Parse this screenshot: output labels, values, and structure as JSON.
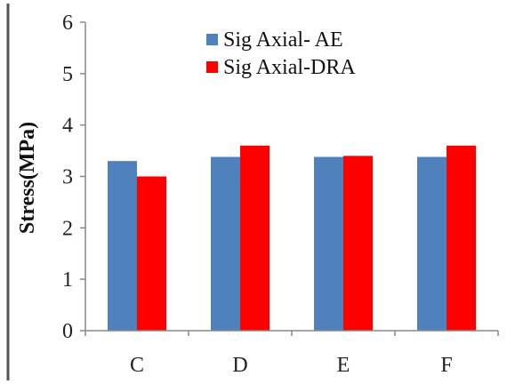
{
  "chart_data": {
    "type": "bar",
    "categories": [
      "C",
      "D",
      "E",
      "F"
    ],
    "series": [
      {
        "name": "Sig Axial- AE",
        "values": [
          3.3,
          3.38,
          3.38,
          3.38
        ],
        "color": "#4F81BD"
      },
      {
        "name": "Sig Axial-DRA",
        "values": [
          3.0,
          3.6,
          3.4,
          3.6
        ],
        "color": "#FF0000"
      }
    ],
    "title": "",
    "xlabel": "",
    "ylabel": "Stress(MPa)",
    "ylim": [
      0,
      6
    ],
    "yticks": [
      0,
      1,
      2,
      3,
      4,
      5,
      6
    ],
    "grid": false,
    "legend_position": "top-right"
  }
}
